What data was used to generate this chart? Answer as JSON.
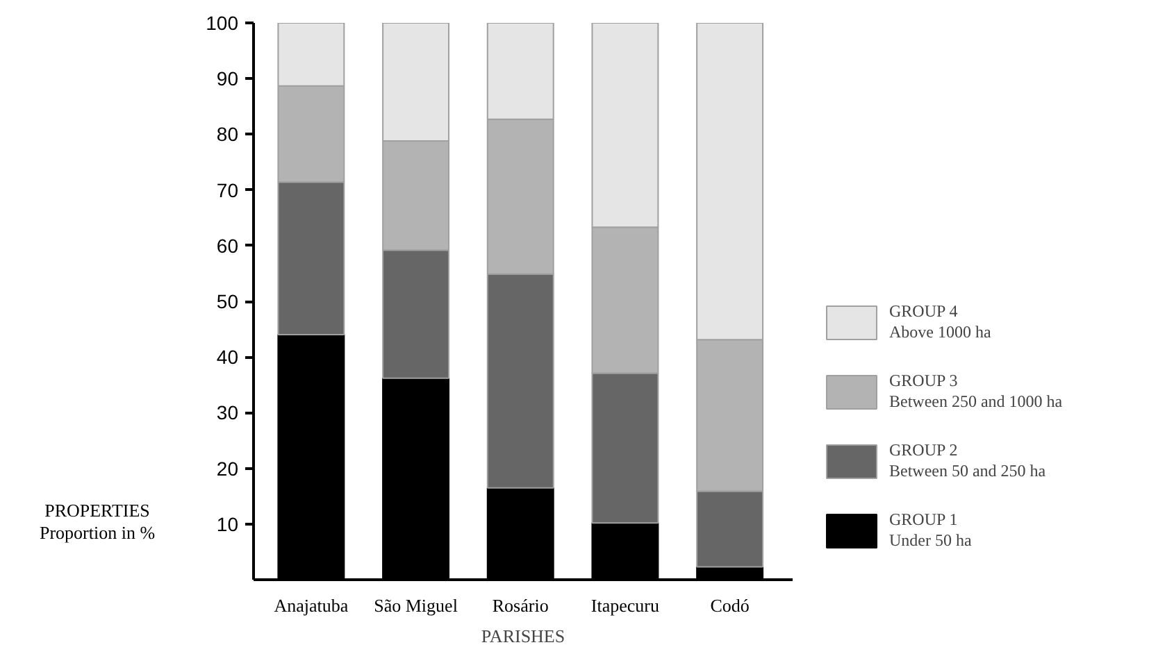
{
  "chart_data": {
    "type": "bar",
    "stacked": true,
    "xlabel": "PARISHES",
    "ylabel": "PROPERTIES\nProportion in %",
    "categories": [
      "Anajatuba",
      "São Miguel",
      "Rosário",
      "Itapecuru",
      "Codó"
    ],
    "series": [
      {
        "name": "GROUP 1\nUnder 50 ha",
        "color": "#000000",
        "values": [
          44,
          36.2,
          16.5,
          10.2,
          2.3
        ]
      },
      {
        "name": "GROUP 2\nBetween 50 and 250 ha",
        "color": "#666666",
        "values": [
          27.4,
          23,
          38.4,
          26.9,
          13.6
        ]
      },
      {
        "name": "GROUP 3\nBetween 250 and 1000 ha",
        "color": "#b3b3b3",
        "values": [
          17.3,
          19.6,
          27.8,
          26.2,
          27.2
        ]
      },
      {
        "name": "GROUP 4\nAbove 1000 ha",
        "color": "#e5e5e5",
        "values": [
          11.3,
          21.2,
          17.3,
          36.7,
          56.9
        ]
      }
    ],
    "ylim": [
      0,
      100
    ],
    "yticks": [
      10,
      20,
      30,
      40,
      50,
      60,
      70,
      80,
      90,
      100
    ],
    "grid": false,
    "legend": "right"
  }
}
